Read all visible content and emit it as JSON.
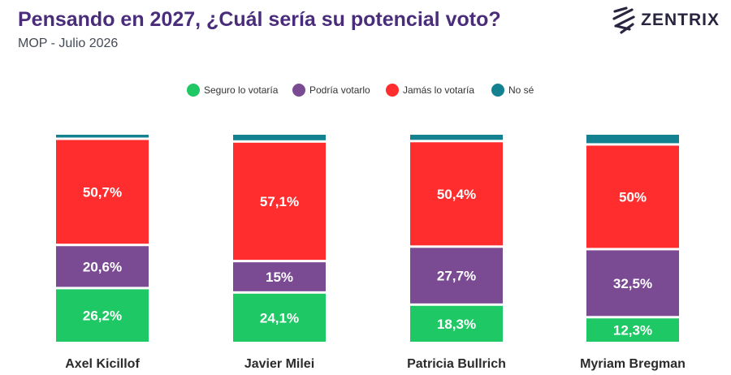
{
  "header": {
    "title": "Pensando en 2027, ¿Cuál sería su potencial voto?",
    "subtitle": "MOP - Julio 2026",
    "brand": "ZENTRIX",
    "brand_icon": "zentrix-logo-icon"
  },
  "chart_data": {
    "type": "bar",
    "stacked": true,
    "legend_position": "top",
    "grid": false,
    "categories": [
      "Axel Kicillof",
      "Javier Milei",
      "Patricia Bullrich",
      "Myriam Bregman"
    ],
    "series": [
      {
        "name": "Seguro lo votaría",
        "color": "#1ec864",
        "values": [
          26.2,
          24.1,
          18.3,
          12.3
        ],
        "labels": [
          "26,2%",
          "24,1%",
          "18,3%",
          "12,3%"
        ]
      },
      {
        "name": "Podría votarlo",
        "color": "#7a4a93",
        "values": [
          20.6,
          15,
          27.7,
          32.5
        ],
        "labels": [
          "20,6%",
          "15%",
          "27,7%",
          "32,5%"
        ]
      },
      {
        "name": "Jamás lo votaría",
        "color": "#ff2d2d",
        "values": [
          50.7,
          57.1,
          50.4,
          50
        ],
        "labels": [
          "50,7%",
          "57,1%",
          "50,4%",
          "50%"
        ]
      },
      {
        "name": "No sé",
        "color": "#13818f",
        "values": [
          2.5,
          3.8,
          3.6,
          5.2
        ],
        "labels": [
          "",
          "",
          "",
          ""
        ]
      }
    ]
  }
}
